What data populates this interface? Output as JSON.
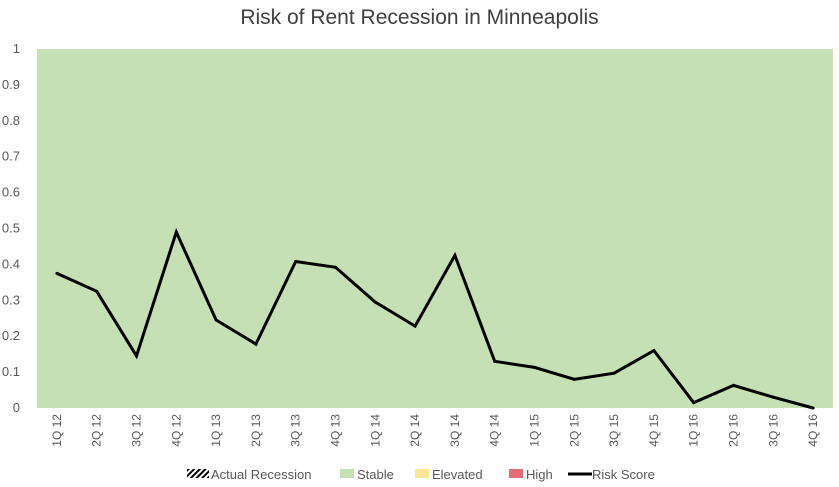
{
  "chart_data": {
    "type": "line",
    "title": "Risk of Rent Recession in Minneapolis",
    "xlabel": "",
    "ylabel": "",
    "ylim": [
      0,
      1
    ],
    "yticks": [
      "0",
      "0.1",
      "0.2",
      "0.3",
      "0.4",
      "0.5",
      "0.6",
      "0.7",
      "0.8",
      "0.9",
      "1"
    ],
    "categories": [
      "1Q 12",
      "2Q 12",
      "3Q 12",
      "4Q 12",
      "1Q 13",
      "2Q 13",
      "3Q 13",
      "4Q 13",
      "1Q 14",
      "2Q 14",
      "3Q 14",
      "4Q 14",
      "1Q 15",
      "2Q 15",
      "3Q 15",
      "4Q 15",
      "1Q 16",
      "2Q 16",
      "3Q 16",
      "4Q 16"
    ],
    "background_band": {
      "name": "Stable",
      "from": 0,
      "to": 1,
      "color": "#c5e0b4"
    },
    "series": [
      {
        "name": "Risk Score",
        "color": "#000000",
        "values": [
          0.375,
          0.325,
          0.145,
          0.49,
          0.245,
          0.178,
          0.408,
          0.392,
          0.295,
          0.228,
          0.425,
          0.13,
          0.113,
          0.08,
          0.097,
          0.16,
          0.015,
          0.063,
          0.03,
          0.0
        ]
      }
    ],
    "legend": {
      "position": "bottom",
      "items": [
        {
          "name": "Actual Recession",
          "symbol": "hatch",
          "color": "#000000"
        },
        {
          "name": "Stable",
          "symbol": "box",
          "color": "#c5e0b4"
        },
        {
          "name": "Elevated",
          "symbol": "box",
          "color": "#ffe699"
        },
        {
          "name": "High",
          "symbol": "box",
          "color": "#e06c75"
        },
        {
          "name": "Risk Score",
          "symbol": "line",
          "color": "#000000"
        }
      ]
    }
  }
}
